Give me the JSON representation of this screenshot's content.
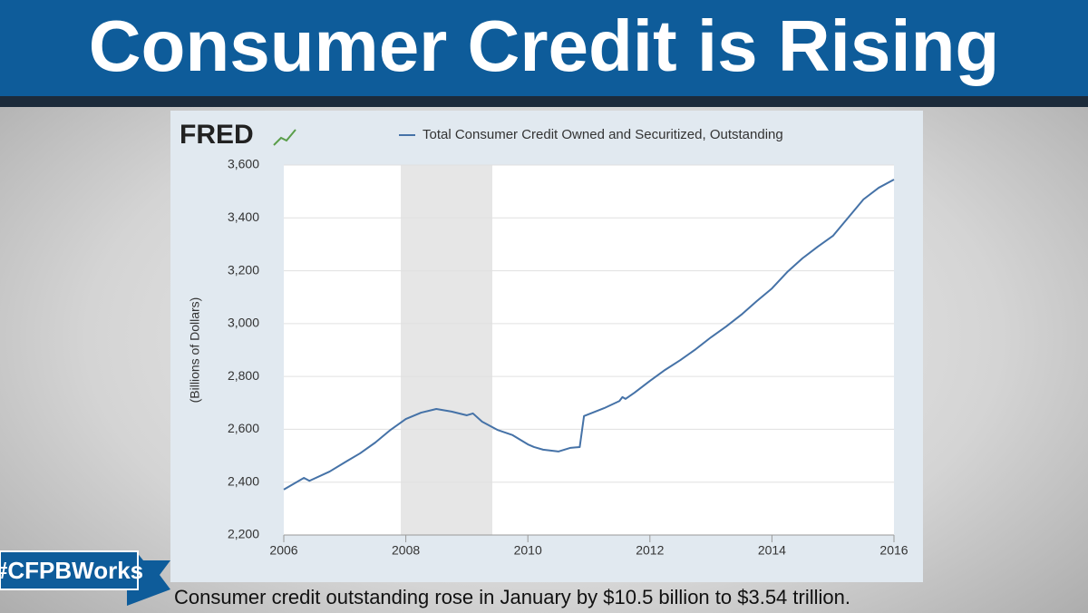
{
  "chart_data": {
    "type": "line",
    "title": "Consumer Credit is Rising",
    "logo": "FRED",
    "y_label": "(Billions of Dollars)",
    "caption": "Consumer credit outstanding rose in January by $10.5 billion to $3.54 trillion.",
    "hashtag": "#CFPBWorks",
    "x": [
      2006.0,
      2006.33,
      2006.42,
      2006.75,
      2007.0,
      2007.25,
      2007.5,
      2007.75,
      2008.0,
      2008.25,
      2008.5,
      2008.75,
      2009.0,
      2009.1,
      2009.25,
      2009.5,
      2009.75,
      2010.0,
      2010.1,
      2010.25,
      2010.5,
      2010.7,
      2010.85,
      2010.92,
      2011.25,
      2011.5,
      2011.55,
      2011.6,
      2011.75,
      2012.0,
      2012.25,
      2012.5,
      2012.75,
      2013.0,
      2013.25,
      2013.5,
      2013.75,
      2014.0,
      2014.25,
      2014.5,
      2014.75,
      2015.0,
      2015.25,
      2015.5,
      2015.75,
      2016.0
    ],
    "series": [
      {
        "name": "Total Consumer Credit Owned and Securitized, Outstanding",
        "color": "#4572a7",
        "values": [
          2372,
          2416,
          2405,
          2440,
          2475,
          2509,
          2550,
          2598,
          2639,
          2663,
          2677,
          2667,
          2653,
          2660,
          2629,
          2598,
          2578,
          2543,
          2533,
          2523,
          2516,
          2530,
          2533,
          2650,
          2680,
          2707,
          2722,
          2715,
          2739,
          2783,
          2825,
          2862,
          2903,
          2948,
          2989,
          3034,
          3085,
          3133,
          3195,
          3247,
          3291,
          3332,
          3401,
          3470,
          3514,
          3545
        ]
      }
    ],
    "recession": [
      2007.917,
      2009.417
    ],
    "recession_color": "#e6e6e6",
    "xlim": [
      2006,
      2016
    ],
    "xticks": [
      2006,
      2008,
      2010,
      2012,
      2014,
      2016
    ],
    "ylim": [
      2200,
      3600
    ],
    "yticks": [
      {
        "value": 2200,
        "label": "2,200"
      },
      {
        "value": 2400,
        "label": "2,400"
      },
      {
        "value": 2600,
        "label": "2,600"
      },
      {
        "value": 2800,
        "label": "2,800"
      },
      {
        "value": 3000,
        "label": "3,000"
      },
      {
        "value": 3200,
        "label": "3,200"
      },
      {
        "value": 3400,
        "label": "3,400"
      },
      {
        "value": 3600,
        "label": "3,600"
      }
    ],
    "grid": true
  }
}
